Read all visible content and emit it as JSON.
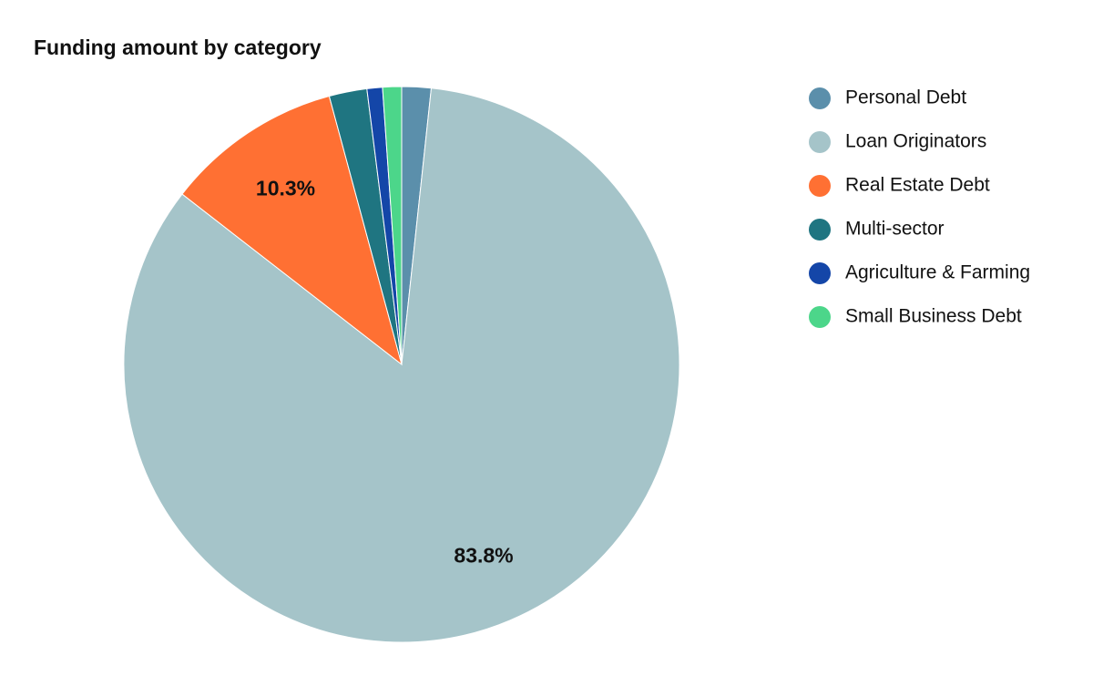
{
  "chart_data": {
    "type": "pie",
    "title": "Funding amount by category",
    "categories": [
      "Personal Debt",
      "Loan Originators",
      "Real Estate Debt",
      "Multi-sector",
      "Agriculture & Farming",
      "Small Business Debt"
    ],
    "values": [
      1.7,
      83.8,
      10.3,
      2.2,
      0.9,
      1.1
    ],
    "value_labels": [
      null,
      "83.8%",
      "10.3%",
      null,
      null,
      null
    ],
    "colors": [
      "#5b8fab",
      "#a5c4c9",
      "#ff7033",
      "#1f7581",
      "#1446a8",
      "#4cd68a"
    ],
    "legend": "right"
  }
}
